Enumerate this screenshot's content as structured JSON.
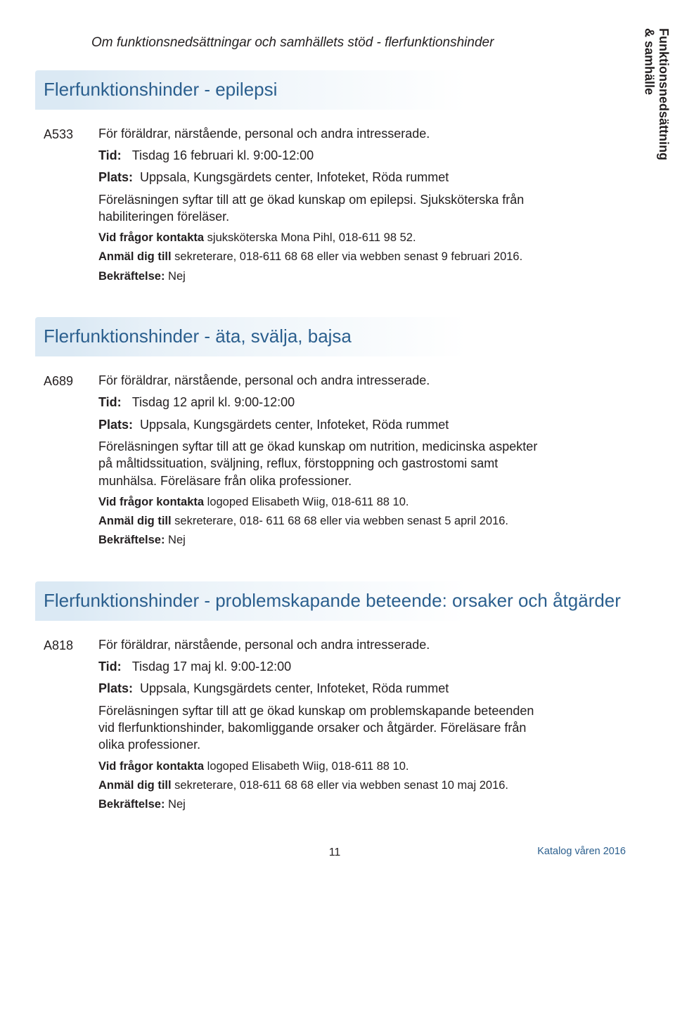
{
  "header": {
    "category_line": "Om funktionsnedsättningar och samhällets stöd - flerfunktionshinder",
    "side_tab_line1": "Funktionsnedsättning",
    "side_tab_line2": "& samhälle"
  },
  "labels": {
    "tid": "Tid:",
    "plats": "Plats:",
    "contact_prefix": "Vid frågor kontakta",
    "register_prefix": "Anmäl dig till",
    "confirm_prefix": "Bekräftelse:"
  },
  "sections": [
    {
      "title": "Flerfunktionshinder - epilepsi",
      "code": "A533",
      "intro": "För föräldrar, närstående, personal och andra intresserade.",
      "tid": "Tisdag 16 februari kl. 9:00-12:00",
      "plats": "Uppsala, Kungsgärdets center, Infoteket, Röda rummet",
      "desc": "Föreläsningen syftar till att ge ökad kunskap om epilepsi. Sjuksköterska från habiliteringen föreläser.",
      "contact": " sjuksköterska Mona Pihl, 018-611 98 52.",
      "register": " sekreterare, 018-611 68 68 eller via webben senast 9 februari 2016.",
      "confirm": " Nej"
    },
    {
      "title": "Flerfunktionshinder - äta, svälja, bajsa",
      "code": "A689",
      "intro": "För föräldrar, närstående, personal och andra intresserade.",
      "tid": "Tisdag 12 april kl. 9:00-12:00",
      "plats": "Uppsala, Kungsgärdets center, Infoteket, Röda rummet",
      "desc": "Föreläsningen syftar till att ge ökad kunskap om nutrition, medicinska aspekter på måltidssituation, sväljning, reflux, förstoppning och gastrostomi samt munhälsa. Föreläsare från olika professioner.",
      "contact": " logoped Elisabeth Wiig, 018-611 88 10.",
      "register": " sekreterare, 018- 611 68 68 eller via webben senast 5 april 2016.",
      "confirm": " Nej"
    },
    {
      "title": "Flerfunktionshinder - problemskapande beteende: orsaker och åtgärder",
      "code": "A818",
      "intro": "För föräldrar, närstående, personal och andra intresserade.",
      "tid": "Tisdag 17 maj kl. 9:00-12:00",
      "plats": "Uppsala, Kungsgärdets center, Infoteket, Röda rummet",
      "desc": "Föreläsningen syftar till att ge ökad kunskap om problemskapande beteenden vid flerfunktionshinder, bakomliggande orsaker och åtgärder. Föreläsare från olika professioner.",
      "contact": " logoped Elisabeth Wiig, 018-611 88 10.",
      "register": " sekreterare, 018-611 68 68 eller via webben senast 10 maj 2016.",
      "confirm": " Nej"
    }
  ],
  "footer": {
    "catalog": "Katalog våren 2016",
    "page_number": "11"
  }
}
